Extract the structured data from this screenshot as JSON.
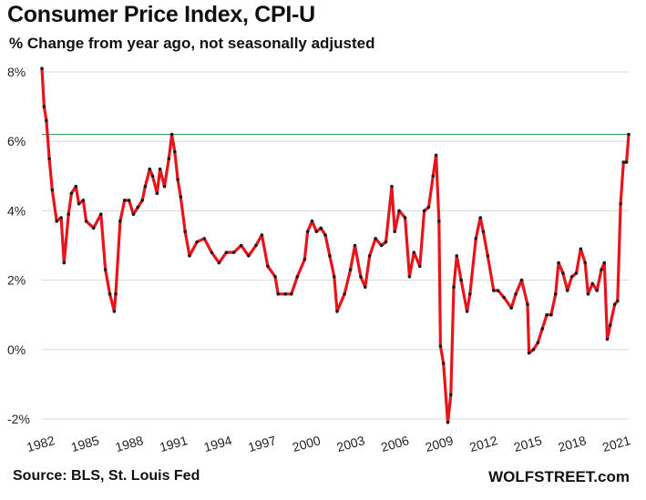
{
  "chart_data": {
    "type": "line",
    "title": "Consumer  Price Index, CPI-U",
    "subtitle": "% Change from year ago, not seasonally adjusted",
    "source": "Source: BLS, St. Louis Fed",
    "brand": "WOLFSTREET.com",
    "ylim": [
      -2,
      8
    ],
    "yticks": [
      -2,
      0,
      2,
      4,
      6,
      8
    ],
    "ytick_labels": [
      "-2%",
      "0%",
      "2%",
      "4%",
      "6%",
      "8%"
    ],
    "xlim": [
      1982.0,
      2021.75
    ],
    "xticks": [
      1982,
      1985,
      1988,
      1991,
      1994,
      1997,
      2000,
      2003,
      2006,
      2009,
      2012,
      2015,
      2018,
      2021
    ],
    "xtick_labels": [
      "1982",
      "1985",
      "1988",
      "1991",
      "1994",
      "1997",
      "2000",
      "2003",
      "2006",
      "2009",
      "2012",
      "2015",
      "2018",
      "2021"
    ],
    "reference_line": {
      "value": 6.2,
      "color": "#3a9a5a"
    },
    "line_color": "#e8141b",
    "marker_color": "#1a1a1a",
    "series": [
      {
        "name": "CPI-U YoY %",
        "x": [
          1982.0,
          1982.15,
          1982.3,
          1982.5,
          1982.7,
          1983.0,
          1983.3,
          1983.5,
          1983.8,
          1984.0,
          1984.3,
          1984.5,
          1984.8,
          1985.0,
          1985.5,
          1986.0,
          1986.3,
          1986.6,
          1986.9,
          1987.0,
          1987.3,
          1987.6,
          1987.9,
          1988.2,
          1988.5,
          1988.8,
          1989.0,
          1989.3,
          1989.5,
          1989.8,
          1990.0,
          1990.3,
          1990.6,
          1990.8,
          1991.0,
          1991.2,
          1991.4,
          1991.7,
          1992.0,
          1992.5,
          1993.0,
          1993.5,
          1994.0,
          1994.5,
          1995.0,
          1995.5,
          1996.0,
          1996.5,
          1996.9,
          1997.3,
          1997.8,
          1998.0,
          1998.5,
          1998.9,
          1999.3,
          1999.8,
          2000.0,
          2000.3,
          2000.6,
          2000.9,
          2001.2,
          2001.5,
          2001.8,
          2002.0,
          2002.5,
          2002.9,
          2003.2,
          2003.6,
          2003.9,
          2004.2,
          2004.6,
          2005.0,
          2005.3,
          2005.7,
          2005.9,
          2006.2,
          2006.6,
          2006.9,
          2007.2,
          2007.6,
          2007.9,
          2008.2,
          2008.5,
          2008.7,
          2008.9,
          2009.0,
          2009.2,
          2009.5,
          2009.7,
          2009.9,
          2010.1,
          2010.4,
          2010.8,
          2011.0,
          2011.4,
          2011.7,
          2011.9,
          2012.2,
          2012.6,
          2012.9,
          2013.3,
          2013.8,
          2014.1,
          2014.5,
          2014.9,
          2015.0,
          2015.3,
          2015.6,
          2015.9,
          2016.2,
          2016.5,
          2016.8,
          2017.0,
          2017.3,
          2017.6,
          2017.9,
          2018.2,
          2018.5,
          2018.8,
          2019.0,
          2019.3,
          2019.6,
          2019.9,
          2020.1,
          2020.3,
          2020.5,
          2020.8,
          2021.0,
          2021.2,
          2021.4,
          2021.6,
          2021.75
        ],
        "y": [
          8.1,
          7.0,
          6.6,
          5.5,
          4.6,
          3.7,
          3.8,
          2.5,
          3.9,
          4.5,
          4.7,
          4.2,
          4.3,
          3.7,
          3.5,
          3.9,
          2.3,
          1.6,
          1.1,
          1.6,
          3.7,
          4.3,
          4.3,
          3.9,
          4.1,
          4.3,
          4.7,
          5.2,
          5.0,
          4.5,
          5.2,
          4.7,
          5.5,
          6.2,
          5.7,
          4.9,
          4.4,
          3.4,
          2.7,
          3.1,
          3.2,
          2.8,
          2.5,
          2.8,
          2.8,
          3.0,
          2.7,
          3.0,
          3.3,
          2.4,
          2.1,
          1.6,
          1.6,
          1.6,
          2.1,
          2.6,
          3.4,
          3.7,
          3.4,
          3.5,
          3.3,
          2.7,
          2.1,
          1.1,
          1.6,
          2.3,
          3.0,
          2.1,
          1.8,
          2.7,
          3.2,
          3.0,
          3.1,
          4.7,
          3.4,
          4.0,
          3.8,
          2.1,
          2.8,
          2.4,
          4.0,
          4.1,
          5.0,
          5.6,
          3.7,
          0.1,
          -0.4,
          -2.1,
          -1.3,
          1.8,
          2.7,
          2.0,
          1.1,
          1.6,
          3.2,
          3.8,
          3.4,
          2.7,
          1.7,
          1.7,
          1.5,
          1.2,
          1.6,
          2.0,
          1.3,
          -0.1,
          0.0,
          0.2,
          0.6,
          1.0,
          1.0,
          1.6,
          2.5,
          2.2,
          1.7,
          2.1,
          2.2,
          2.9,
          2.5,
          1.6,
          1.9,
          1.7,
          2.3,
          2.5,
          0.3,
          0.7,
          1.3,
          1.4,
          4.2,
          5.4,
          5.4,
          6.2
        ]
      }
    ]
  }
}
